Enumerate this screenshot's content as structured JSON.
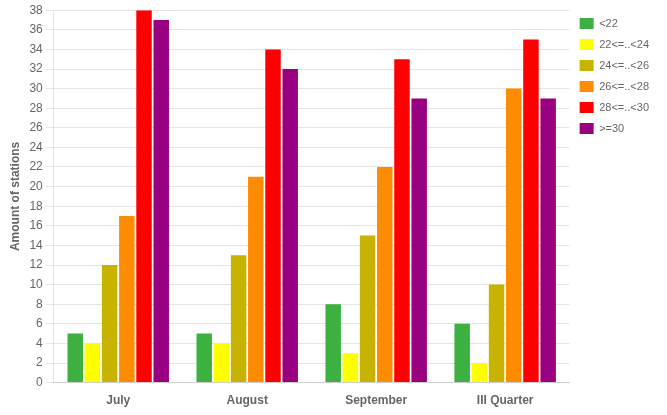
{
  "chart_data": {
    "type": "bar",
    "categories": [
      "July",
      "August",
      "September",
      "III Quarter"
    ],
    "series": [
      {
        "name": "<22",
        "color": "#3cb040",
        "values": [
          5,
          5,
          8,
          6
        ]
      },
      {
        "name": "22<=..<24",
        "color": "#ffff00",
        "values": [
          4,
          4,
          3,
          2
        ]
      },
      {
        "name": "24<=..<26",
        "color": "#c8b400",
        "values": [
          12,
          13,
          15,
          10
        ]
      },
      {
        "name": "26<=..<28",
        "color": "#ff8c00",
        "values": [
          17,
          21,
          22,
          30
        ]
      },
      {
        "name": "28<=..<30",
        "color": "#ff0000",
        "values": [
          38,
          34,
          33,
          35
        ]
      },
      {
        "name": ">=30",
        "color": "#990080",
        "values": [
          37,
          32,
          29,
          29
        ]
      }
    ],
    "ylabel": "Amount of stations",
    "ylim": [
      0,
      38
    ],
    "yticks": [
      0,
      2,
      4,
      6,
      8,
      10,
      12,
      14,
      16,
      18,
      20,
      22,
      24,
      26,
      28,
      30,
      32,
      34,
      36,
      38
    ],
    "grid": true,
    "legend": "upper right"
  }
}
